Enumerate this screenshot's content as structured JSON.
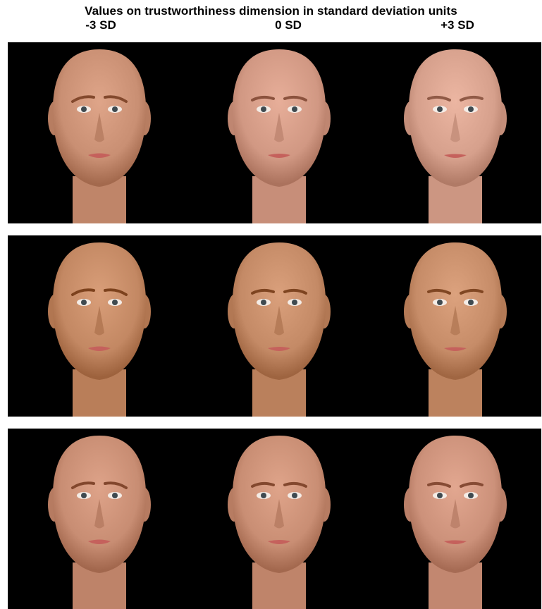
{
  "figure": {
    "title": "Values on trustworthiness dimension in standard deviation units",
    "columns": [
      "-3 SD",
      "0 SD",
      "+3 SD"
    ]
  },
  "rows": [
    {
      "faces": [
        {
          "skin": "#c98f73",
          "brow_tilt": 1
        },
        {
          "skin": "#d19883",
          "brow_tilt": 0
        },
        {
          "skin": "#d6a08c",
          "brow_tilt": -1
        }
      ]
    },
    {
      "faces": [
        {
          "skin": "#c38863",
          "brow_tilt": 1
        },
        {
          "skin": "#c48a66",
          "brow_tilt": 0
        },
        {
          "skin": "#c68c68",
          "brow_tilt": -1
        }
      ]
    },
    {
      "faces": [
        {
          "skin": "#c88d73",
          "brow_tilt": 1
        },
        {
          "skin": "#c98e74",
          "brow_tilt": 0
        },
        {
          "skin": "#cc917a",
          "brow_tilt": -1
        }
      ]
    }
  ]
}
